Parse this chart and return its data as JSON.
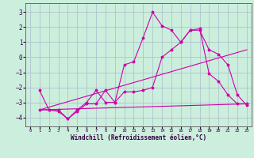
{
  "xlabel": "Windchill (Refroidissement éolien,°C)",
  "bg_color": "#cceedd",
  "grid_color": "#aabbcc",
  "line_color": "#cc00aa",
  "xlim": [
    -0.5,
    23.5
  ],
  "ylim": [
    -4.6,
    3.6
  ],
  "yticks": [
    -4,
    -3,
    -2,
    -1,
    0,
    1,
    2,
    3
  ],
  "xticks": [
    0,
    1,
    2,
    3,
    4,
    5,
    6,
    7,
    8,
    9,
    10,
    11,
    12,
    13,
    14,
    15,
    16,
    17,
    18,
    19,
    20,
    21,
    22,
    23
  ],
  "series": [
    {
      "x": [
        1,
        2,
        3,
        4,
        5,
        6,
        7,
        8,
        9,
        10,
        11,
        12,
        13,
        14,
        15,
        16,
        17,
        18,
        19,
        20,
        21,
        22,
        23
      ],
      "y": [
        -2.2,
        -3.5,
        -3.5,
        -4.1,
        -3.5,
        -3.0,
        -2.2,
        -3.0,
        -3.0,
        -0.5,
        -0.3,
        1.3,
        3.0,
        2.1,
        1.8,
        1.0,
        1.8,
        1.9,
        -1.1,
        -1.6,
        -2.5,
        -3.1,
        -3.1
      ],
      "marker": "*",
      "markersize": 2.5,
      "linewidth": 0.8
    },
    {
      "x": [
        1,
        2,
        3,
        4,
        5,
        6,
        7,
        8,
        9,
        10,
        11,
        12,
        13,
        14,
        15,
        16,
        17,
        18,
        19,
        20,
        21,
        22,
        23
      ],
      "y": [
        -3.5,
        -3.5,
        -3.6,
        -4.1,
        -3.6,
        -3.1,
        -3.1,
        -2.2,
        -3.0,
        -2.3,
        -2.3,
        -2.2,
        -2.0,
        0.0,
        0.5,
        1.0,
        1.8,
        1.8,
        0.5,
        0.2,
        -0.5,
        -2.5,
        -3.2
      ],
      "marker": "*",
      "markersize": 2.5,
      "linewidth": 0.8
    },
    {
      "x": [
        1,
        23
      ],
      "y": [
        -3.5,
        0.5
      ],
      "marker": null,
      "markersize": 0,
      "linewidth": 0.8
    },
    {
      "x": [
        1,
        23
      ],
      "y": [
        -3.5,
        -3.1
      ],
      "marker": null,
      "markersize": 0,
      "linewidth": 0.8
    }
  ]
}
